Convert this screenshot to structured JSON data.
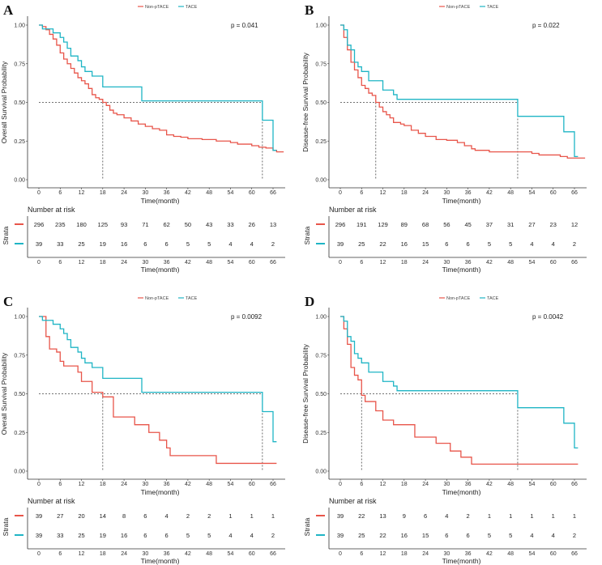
{
  "colors": {
    "non_ptace": "#E8554A",
    "tace": "#1FB5C5"
  },
  "chart_data": [
    {
      "type": "line",
      "panel": "A",
      "ylabel": "Overall Survival Probability",
      "xlabel": "Time(month)",
      "xlim": [
        0,
        69
      ],
      "ylim": [
        0,
        1
      ],
      "xticks": [
        "0",
        "6",
        "12",
        "18",
        "24",
        "30",
        "36",
        "42",
        "48",
        "54",
        "60",
        "66"
      ],
      "yticks": [
        "0.00",
        "0.25",
        "0.50",
        "0.75",
        "1.00"
      ],
      "p_value": "p = 0.041",
      "legend": [
        "Non-pTACE",
        "TACE"
      ],
      "legend_position": "top",
      "median_line": 0.5,
      "medians": [
        18,
        63
      ],
      "series": [
        {
          "name": "Non-pTACE",
          "points": [
            [
              0,
              1
            ],
            [
              1,
              0.99
            ],
            [
              2,
              0.97
            ],
            [
              3,
              0.94
            ],
            [
              4,
              0.91
            ],
            [
              5,
              0.87
            ],
            [
              6,
              0.82
            ],
            [
              7,
              0.78
            ],
            [
              8,
              0.75
            ],
            [
              9,
              0.72
            ],
            [
              10,
              0.69
            ],
            [
              11,
              0.66
            ],
            [
              12,
              0.64
            ],
            [
              13,
              0.62
            ],
            [
              14,
              0.59
            ],
            [
              15,
              0.55
            ],
            [
              16,
              0.53
            ],
            [
              17,
              0.52
            ],
            [
              18,
              0.5
            ],
            [
              19,
              0.48
            ],
            [
              20,
              0.45
            ],
            [
              21,
              0.43
            ],
            [
              22,
              0.42
            ],
            [
              24,
              0.4
            ],
            [
              26,
              0.38
            ],
            [
              28,
              0.36
            ],
            [
              30,
              0.345
            ],
            [
              32,
              0.33
            ],
            [
              34,
              0.32
            ],
            [
              36,
              0.29
            ],
            [
              38,
              0.28
            ],
            [
              40,
              0.275
            ],
            [
              42,
              0.265
            ],
            [
              46,
              0.26
            ],
            [
              50,
              0.25
            ],
            [
              54,
              0.24
            ],
            [
              56,
              0.23
            ],
            [
              60,
              0.22
            ],
            [
              62,
              0.21
            ],
            [
              64,
              0.205
            ],
            [
              66,
              0.19
            ],
            [
              67,
              0.18
            ],
            [
              69,
              0.18
            ]
          ]
        },
        {
          "name": "TACE",
          "points": [
            [
              0,
              1
            ],
            [
              1,
              0.975
            ],
            [
              4,
              0.95
            ],
            [
              6,
              0.92
            ],
            [
              7,
              0.89
            ],
            [
              8,
              0.85
            ],
            [
              9,
              0.8
            ],
            [
              11,
              0.77
            ],
            [
              12,
              0.73
            ],
            [
              13,
              0.7
            ],
            [
              15,
              0.67
            ],
            [
              18,
              0.6
            ],
            [
              29,
              0.51
            ],
            [
              63,
              0.385
            ],
            [
              66,
              0.19
            ],
            [
              67,
              0.19
            ]
          ]
        }
      ],
      "risk_table": {
        "title": "Number at risk",
        "strata_label": "Strata",
        "rows": [
          [
            296,
            235,
            180,
            125,
            93,
            71,
            62,
            50,
            43,
            33,
            26,
            13
          ],
          [
            39,
            33,
            25,
            19,
            16,
            6,
            6,
            5,
            5,
            4,
            4,
            2
          ]
        ]
      }
    },
    {
      "type": "line",
      "panel": "B",
      "ylabel": "Disease-free Survival Probability",
      "xlabel": "Time(month)",
      "xlim": [
        0,
        69
      ],
      "ylim": [
        0,
        1
      ],
      "xticks": [
        "0",
        "6",
        "12",
        "18",
        "24",
        "30",
        "36",
        "42",
        "48",
        "54",
        "60",
        "66"
      ],
      "yticks": [
        "0.00",
        "0.25",
        "0.50",
        "0.75",
        "1.00"
      ],
      "p_value": "p = 0.022",
      "legend": [
        "Non-pTACE",
        "TACE"
      ],
      "legend_position": "top",
      "median_line": 0.5,
      "medians": [
        10,
        50
      ],
      "series": [
        {
          "name": "Non-pTACE",
          "points": [
            [
              0,
              1
            ],
            [
              1,
              0.92
            ],
            [
              2,
              0.84
            ],
            [
              3,
              0.76
            ],
            [
              4,
              0.71
            ],
            [
              5,
              0.66
            ],
            [
              6,
              0.61
            ],
            [
              7,
              0.59
            ],
            [
              8,
              0.56
            ],
            [
              9,
              0.545
            ],
            [
              10,
              0.5
            ],
            [
              11,
              0.47
            ],
            [
              12,
              0.44
            ],
            [
              13,
              0.42
            ],
            [
              14,
              0.4
            ],
            [
              15,
              0.37
            ],
            [
              17,
              0.36
            ],
            [
              18,
              0.35
            ],
            [
              20,
              0.32
            ],
            [
              22,
              0.3
            ],
            [
              24,
              0.28
            ],
            [
              27,
              0.26
            ],
            [
              30,
              0.255
            ],
            [
              33,
              0.24
            ],
            [
              35,
              0.22
            ],
            [
              37,
              0.2
            ],
            [
              38,
              0.19
            ],
            [
              42,
              0.18
            ],
            [
              50,
              0.18
            ],
            [
              54,
              0.17
            ],
            [
              56,
              0.16
            ],
            [
              62,
              0.15
            ],
            [
              64,
              0.14
            ],
            [
              69,
              0.14
            ]
          ]
        },
        {
          "name": "TACE",
          "points": [
            [
              0,
              1
            ],
            [
              1,
              0.97
            ],
            [
              2,
              0.87
            ],
            [
              3,
              0.84
            ],
            [
              4,
              0.76
            ],
            [
              5,
              0.73
            ],
            [
              6,
              0.7
            ],
            [
              8,
              0.64
            ],
            [
              12,
              0.58
            ],
            [
              15,
              0.55
            ],
            [
              16,
              0.52
            ],
            [
              50,
              0.41
            ],
            [
              63,
              0.31
            ],
            [
              66,
              0.15
            ],
            [
              67,
              0.15
            ]
          ]
        }
      ],
      "risk_table": {
        "title": "Number at risk",
        "strata_label": "Strata",
        "rows": [
          [
            296,
            191,
            129,
            89,
            68,
            56,
            45,
            37,
            31,
            27,
            23,
            12
          ],
          [
            39,
            25,
            22,
            16,
            15,
            6,
            6,
            5,
            5,
            4,
            4,
            2
          ]
        ]
      }
    },
    {
      "type": "line",
      "panel": "C",
      "ylabel": "Overall Survival Probability",
      "xlabel": "Time(month)",
      "xlim": [
        0,
        69
      ],
      "ylim": [
        0,
        1
      ],
      "xticks": [
        "0",
        "6",
        "12",
        "18",
        "24",
        "30",
        "36",
        "42",
        "48",
        "54",
        "60",
        "66"
      ],
      "yticks": [
        "0.00",
        "0.25",
        "0.50",
        "0.75",
        "1.00"
      ],
      "p_value": "p = 0.0092",
      "legend": [
        "Non-pTACE",
        "TACE"
      ],
      "legend_position": "top",
      "median_line": 0.5,
      "medians": [
        18,
        63
      ],
      "series": [
        {
          "name": "Non-pTACE",
          "points": [
            [
              0,
              1
            ],
            [
              2,
              0.87
            ],
            [
              3,
              0.79
            ],
            [
              5,
              0.77
            ],
            [
              6,
              0.71
            ],
            [
              7,
              0.68
            ],
            [
              11,
              0.64
            ],
            [
              12,
              0.58
            ],
            [
              15,
              0.51
            ],
            [
              18,
              0.48
            ],
            [
              21,
              0.35
            ],
            [
              27,
              0.3
            ],
            [
              31,
              0.25
            ],
            [
              34,
              0.2
            ],
            [
              36,
              0.15
            ],
            [
              37,
              0.1
            ],
            [
              50,
              0.05
            ],
            [
              67,
              0.05
            ]
          ]
        },
        {
          "name": "TACE",
          "points": [
            [
              0,
              1
            ],
            [
              1,
              0.975
            ],
            [
              4,
              0.95
            ],
            [
              6,
              0.92
            ],
            [
              7,
              0.89
            ],
            [
              8,
              0.85
            ],
            [
              9,
              0.8
            ],
            [
              11,
              0.77
            ],
            [
              12,
              0.73
            ],
            [
              13,
              0.7
            ],
            [
              15,
              0.67
            ],
            [
              18,
              0.6
            ],
            [
              29,
              0.51
            ],
            [
              63,
              0.385
            ],
            [
              66,
              0.19
            ],
            [
              67,
              0.19
            ]
          ]
        }
      ],
      "risk_table": {
        "title": "Number at risk",
        "strata_label": "Strata",
        "rows": [
          [
            39,
            27,
            20,
            14,
            8,
            6,
            4,
            2,
            2,
            1,
            1,
            1
          ],
          [
            39,
            33,
            25,
            19,
            16,
            6,
            6,
            5,
            5,
            4,
            4,
            2
          ]
        ]
      }
    },
    {
      "type": "line",
      "panel": "D",
      "ylabel": "Disease-free Survival Probability",
      "xlabel": "Time(month)",
      "xlim": [
        0,
        69
      ],
      "ylim": [
        0,
        1
      ],
      "xticks": [
        "0",
        "6",
        "12",
        "18",
        "24",
        "30",
        "36",
        "42",
        "48",
        "54",
        "60",
        "66"
      ],
      "yticks": [
        "0.00",
        "0.25",
        "0.50",
        "0.75",
        "1.00"
      ],
      "p_value": "p = 0.0042",
      "legend": [
        "Non-pTACE",
        "TACE"
      ],
      "legend_position": "top",
      "median_line": 0.5,
      "medians": [
        6,
        50
      ],
      "series": [
        {
          "name": "Non-pTACE",
          "points": [
            [
              0,
              1
            ],
            [
              1,
              0.92
            ],
            [
              2,
              0.82
            ],
            [
              3,
              0.67
            ],
            [
              4,
              0.62
            ],
            [
              5,
              0.59
            ],
            [
              6,
              0.49
            ],
            [
              7,
              0.45
            ],
            [
              10,
              0.39
            ],
            [
              12,
              0.33
            ],
            [
              15,
              0.3
            ],
            [
              21,
              0.22
            ],
            [
              27,
              0.18
            ],
            [
              31,
              0.13
            ],
            [
              34,
              0.09
            ],
            [
              37,
              0.045
            ],
            [
              67,
              0.045
            ]
          ]
        },
        {
          "name": "TACE",
          "points": [
            [
              0,
              1
            ],
            [
              1,
              0.97
            ],
            [
              2,
              0.87
            ],
            [
              3,
              0.84
            ],
            [
              4,
              0.76
            ],
            [
              5,
              0.73
            ],
            [
              6,
              0.7
            ],
            [
              8,
              0.64
            ],
            [
              12,
              0.58
            ],
            [
              15,
              0.55
            ],
            [
              16,
              0.52
            ],
            [
              50,
              0.41
            ],
            [
              63,
              0.31
            ],
            [
              66,
              0.15
            ],
            [
              67,
              0.15
            ]
          ]
        }
      ],
      "risk_table": {
        "title": "Number at risk",
        "strata_label": "Strata",
        "rows": [
          [
            39,
            22,
            13,
            9,
            6,
            4,
            2,
            1,
            1,
            1,
            1,
            1
          ],
          [
            39,
            25,
            22,
            16,
            15,
            6,
            6,
            5,
            5,
            4,
            4,
            2
          ]
        ]
      }
    }
  ]
}
